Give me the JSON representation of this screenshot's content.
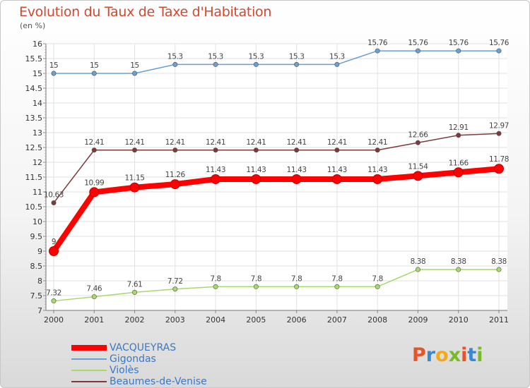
{
  "title": "Evolution du Taux de Taxe d'Habitation",
  "unit": "(en %)",
  "logo": {
    "text": "Proxiti",
    "colors": [
      "#e8542a",
      "#3d86d0",
      "#f3a91b",
      "#7ab929",
      "#e8542a",
      "#3d86d0",
      "#7ab929"
    ]
  },
  "chart_data": {
    "type": "line",
    "x": [
      "2000",
      "2001",
      "2002",
      "2003",
      "2004",
      "2005",
      "2006",
      "2007",
      "2008",
      "2009",
      "2010",
      "2011"
    ],
    "ylim": [
      7,
      16
    ],
    "yticks": [
      "7",
      "7.5",
      "8",
      "8.5",
      "9",
      "9.5",
      "10",
      "10.5",
      "11",
      "11.5",
      "12",
      "12.5",
      "13",
      "13.5",
      "14",
      "14.5",
      "15",
      "15.5",
      "16"
    ],
    "grid": true,
    "legend_position": "bottom-left",
    "series": [
      {
        "name": "Gigondas",
        "color": "#6b9fd0",
        "values": [
          15,
          15,
          15,
          15.3,
          15.3,
          15.3,
          15.3,
          15.3,
          15.76,
          15.76,
          15.76,
          15.76
        ],
        "labels": [
          "15",
          "15",
          "15",
          "15.3",
          "15.3",
          "15.3",
          "15.3",
          "15.3",
          "15.76",
          "15.76",
          "15.76",
          "15.76"
        ]
      },
      {
        "name": "Beaumes-de-Venise",
        "color": "#7d3a3a",
        "values": [
          10.63,
          12.41,
          12.41,
          12.41,
          12.41,
          12.41,
          12.41,
          12.41,
          12.41,
          12.66,
          12.91,
          12.97
        ],
        "labels": [
          "10.63",
          "12.41",
          "12.41",
          "12.41",
          "12.41",
          "12.41",
          "12.41",
          "12.41",
          "12.41",
          "12.66",
          "12.91",
          "12.97"
        ]
      },
      {
        "name": "VACQUEYRAS",
        "color": "#ff0000",
        "values": [
          9,
          10.99,
          11.15,
          11.26,
          11.43,
          11.43,
          11.43,
          11.43,
          11.43,
          11.54,
          11.66,
          11.78
        ],
        "labels": [
          "9",
          "10.99",
          "11.15",
          "11.26",
          "11.43",
          "11.43",
          "11.43",
          "11.43",
          "11.43",
          "11.54",
          "11.66",
          "11.78"
        ]
      },
      {
        "name": "Violès",
        "color": "#a6d96a",
        "values": [
          7.32,
          7.46,
          7.61,
          7.72,
          7.8,
          7.8,
          7.8,
          7.8,
          7.8,
          8.38,
          8.38,
          8.38
        ],
        "labels": [
          "7.32",
          "7.46",
          "7.61",
          "7.72",
          "7.8",
          "7.8",
          "7.8",
          "7.8",
          "7.8",
          "8.38",
          "8.38",
          "8.38"
        ]
      }
    ],
    "legend": [
      "VACQUEYRAS",
      "Gigondas",
      "Violès",
      "Beaumes-de-Venise"
    ]
  }
}
